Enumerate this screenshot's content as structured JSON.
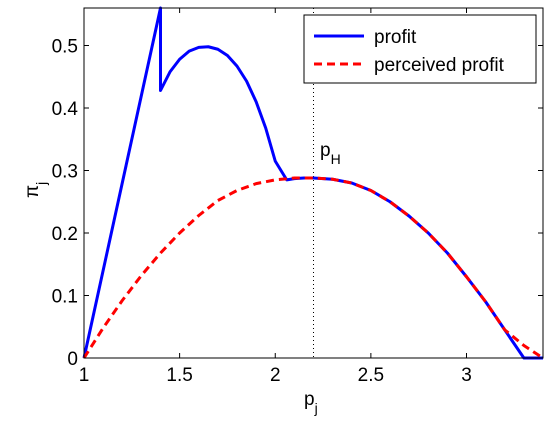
{
  "chart_data": {
    "type": "line",
    "xlabel": "p",
    "xlabel_sub": "j",
    "ylabel": "π",
    "ylabel_sub": "j",
    "xlim": [
      1,
      3.4
    ],
    "ylim": [
      0,
      0.56
    ],
    "xticks": [
      1,
      1.5,
      2,
      2.5,
      3
    ],
    "xtick_labels": [
      "1",
      "1.5",
      "2",
      "2.5",
      "3"
    ],
    "yticks": [
      0,
      0.1,
      0.2,
      0.3,
      0.4,
      0.5
    ],
    "ytick_labels": [
      "0",
      "0.1",
      "0.2",
      "0.3",
      "0.4",
      "0.5"
    ],
    "grid": false,
    "legend_position": "top-right",
    "annotation": {
      "text": "p",
      "sub": "H",
      "x": 2.2
    },
    "vline_x": 2.2,
    "series": [
      {
        "name": "profit",
        "color": "#0000ff",
        "style": "solid",
        "x": [
          1.0,
          1.4,
          1.4,
          1.45,
          1.5,
          1.55,
          1.6,
          1.65,
          1.7,
          1.75,
          1.8,
          1.85,
          1.9,
          1.95,
          2.0,
          2.06,
          2.1,
          2.15,
          2.2,
          2.25,
          2.3,
          2.4,
          2.5,
          2.6,
          2.7,
          2.8,
          2.9,
          3.0,
          3.1,
          3.2,
          3.3,
          3.4
        ],
        "y": [
          0.0,
          0.56,
          0.428,
          0.458,
          0.478,
          0.491,
          0.497,
          0.498,
          0.494,
          0.484,
          0.467,
          0.443,
          0.41,
          0.368,
          0.315,
          0.285,
          0.287,
          0.288,
          0.288,
          0.287,
          0.286,
          0.28,
          0.268,
          0.25,
          0.227,
          0.2,
          0.168,
          0.13,
          0.09,
          0.045,
          0.0,
          0.0
        ]
      },
      {
        "name": "perceived profit",
        "color": "#ff0000",
        "style": "dashed",
        "x": [
          1.0,
          1.1,
          1.2,
          1.3,
          1.4,
          1.5,
          1.6,
          1.7,
          1.8,
          1.9,
          2.0,
          2.1,
          2.2,
          2.3,
          2.4,
          2.5,
          2.6,
          2.7,
          2.8,
          2.9,
          3.0,
          3.1,
          3.2,
          3.3,
          3.4
        ],
        "y": [
          0.0,
          0.048,
          0.092,
          0.132,
          0.168,
          0.2,
          0.228,
          0.252,
          0.268,
          0.279,
          0.285,
          0.288,
          0.288,
          0.286,
          0.28,
          0.268,
          0.25,
          0.227,
          0.2,
          0.168,
          0.13,
          0.09,
          0.045,
          0.02,
          0.0
        ]
      }
    ]
  }
}
